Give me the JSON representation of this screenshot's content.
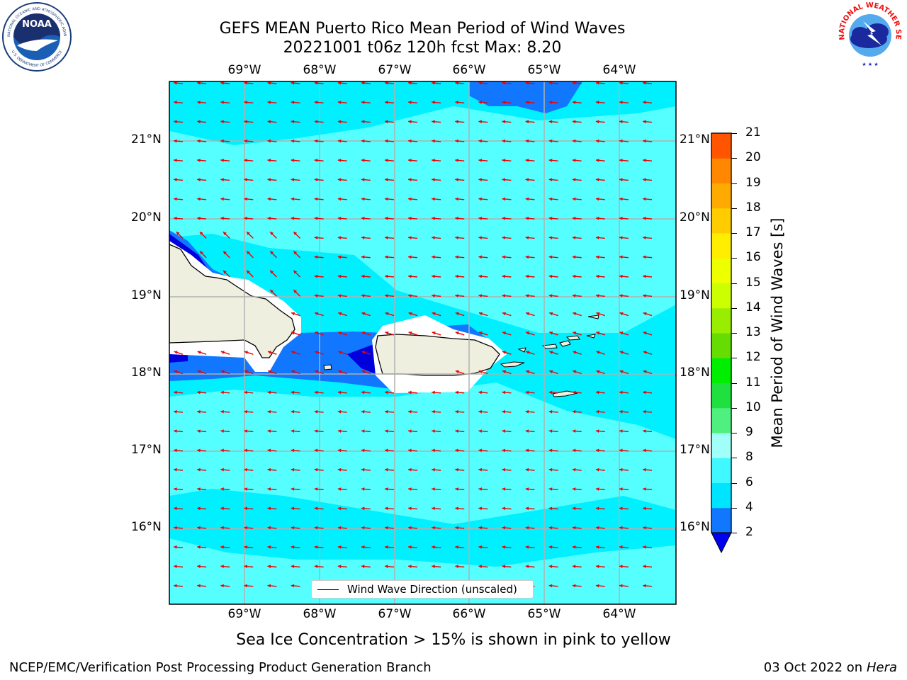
{
  "title_line1": "GEFS MEAN Puerto Rico Mean Period of Wind Waves",
  "title_line2": "20221001 t06z 120h fcst   Max: 8.20",
  "lon_labels": [
    "69°W",
    "68°W",
    "67°W",
    "66°W",
    "65°W",
    "64°W"
  ],
  "lat_labels": [
    "21°N",
    "20°N",
    "19°N",
    "18°N",
    "17°N",
    "16°N"
  ],
  "legend_label": "Wind Wave Direction (unscaled)",
  "colorbar": {
    "title": "Mean Period of Wind Waves [s]",
    "ticks": [
      "2",
      "4",
      "6",
      "8",
      "9",
      "10",
      "11",
      "12",
      "13",
      "14",
      "15",
      "16",
      "17",
      "18",
      "19",
      "20",
      "21"
    ],
    "colors": [
      "#1177ff",
      "#00e5ff",
      "#40f8ff",
      "#a0fff8",
      "#50f080",
      "#20e040",
      "#00ee00",
      "#66dd00",
      "#99ee00",
      "#ccff00",
      "#eeff00",
      "#ffee00",
      "#ffcc00",
      "#ffaa00",
      "#ff8800",
      "#ff5500",
      "#ff2200",
      "#ff0000"
    ],
    "underflow_color": "#0000ee"
  },
  "colors": {
    "ocean_base": "#00f0ff",
    "ocean_light": "#55ffff",
    "ocean_dark": "#1177ff",
    "ocean_deep": "#0000dd",
    "land": "#efefdf",
    "arrow": "#ee0000"
  },
  "note": "Sea Ice Concentration > 15% is shown in pink to yellow",
  "footer_left": "NCEP/EMC/Verification Post Processing Product Generation Branch",
  "footer_right_date": "03 Oct 2022 on ",
  "footer_right_host": "Hera",
  "logos": {
    "noaa_text": "NOAA",
    "noaa_ring": "NATIONAL OCEANIC AND ATMOSPHERIC ADMINISTRATION",
    "noaa_ring2": "U.S. DEPARTMENT OF COMMERCE",
    "nws_ring": "NATIONAL WEATHER SERVICE"
  }
}
